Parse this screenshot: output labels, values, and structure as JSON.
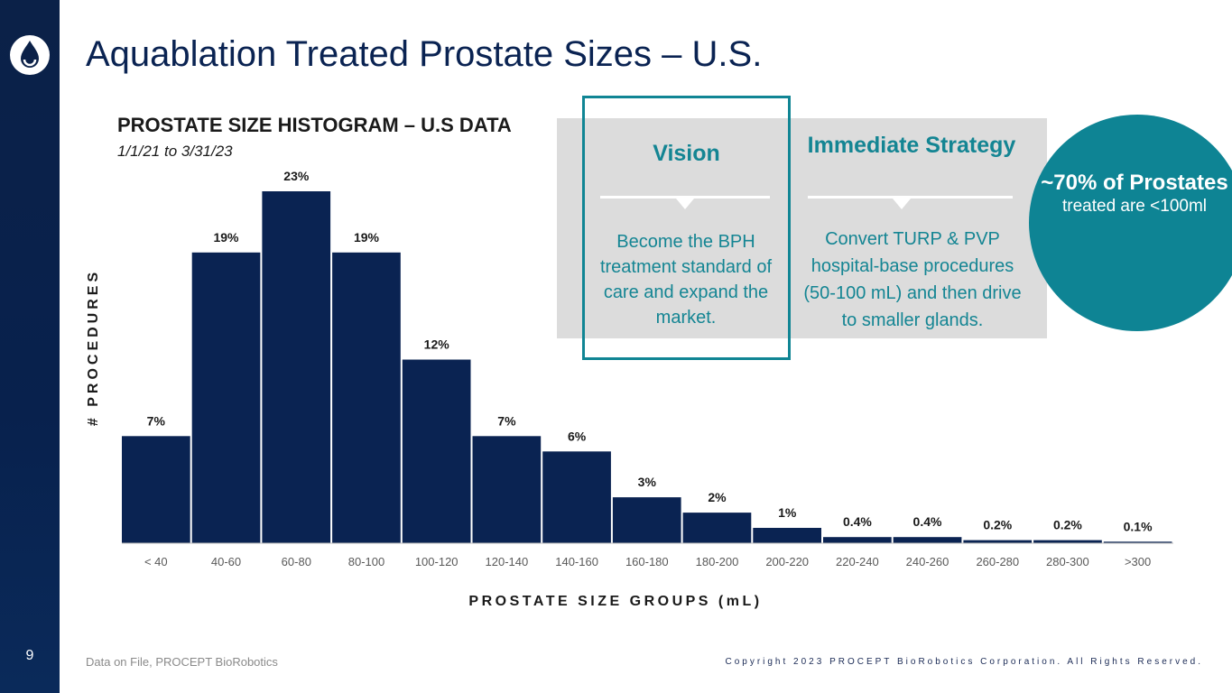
{
  "slide": {
    "title": "Aquablation Treated Prostate Sizes – U.S.",
    "page_number": "9",
    "footer_source": "Data on File, PROCEPT BioRobotics",
    "footer_copyright": "Copyright 2023 PROCEPT BioRobotics Corporation. All Rights Reserved.",
    "logo_icon": "water-droplet-icon"
  },
  "vision": {
    "title": "Vision",
    "body": "Become the BPH treatment standard of care and expand the market."
  },
  "strategy": {
    "title": "Immediate Strategy",
    "body": "Convert TURP & PVP hospital-base procedures (50-100 mL) and then drive to smaller glands."
  },
  "callout": {
    "headline": "~70% of Prostates",
    "subline": "treated are <100ml"
  },
  "colors": {
    "navy": "#0a2352",
    "teal": "#148593",
    "panel_gray": "#dcdcdc"
  },
  "chart_data": {
    "type": "bar",
    "title": "PROSTATE SIZE HISTOGRAM – U.S DATA",
    "subtitle": "1/1/21 to 3/31/23",
    "xlabel": "PROSTATE SIZE GROUPS (mL)",
    "ylabel": "# PROCEDURES",
    "categories": [
      "< 40",
      "40-60",
      "60-80",
      "80-100",
      "100-120",
      "120-140",
      "140-160",
      "160-180",
      "180-200",
      "200-220",
      "220-240",
      "240-260",
      "260-280",
      "280-300",
      ">300"
    ],
    "values": [
      7,
      19,
      23,
      19,
      12,
      7,
      6,
      3,
      2,
      1,
      0.4,
      0.4,
      0.2,
      0.2,
      0.1
    ],
    "value_labels": [
      "7%",
      "19%",
      "23%",
      "19%",
      "12%",
      "7%",
      "6%",
      "3%",
      "2%",
      "1%",
      "0.4%",
      "0.4%",
      "0.2%",
      "0.2%",
      "0.1%"
    ],
    "ylim": [
      0,
      23
    ],
    "grid": false,
    "legend": "none"
  }
}
